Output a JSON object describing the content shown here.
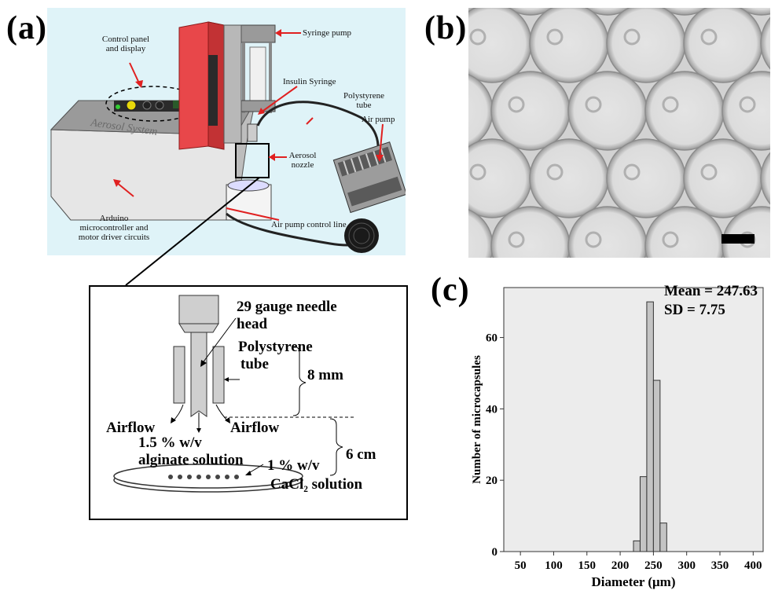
{
  "figure": {
    "panel_a": {
      "letter": "(a)",
      "device_labels": {
        "control_panel": "Control panel\nand display",
        "syringe_pump": "Syringe pump",
        "insulin_syringe": "Insulin Syringe",
        "polystyrene_tube": "Polystyrene\ntube",
        "air_pump": "Air pump",
        "aerosol_nozzle": "Aerosol\nnozzle",
        "arduino": "Arduino\nmicrocontroller and\nmotor driver circuits",
        "air_pump_control_line": "Air pump control line",
        "device_brand": "Aerosol System"
      },
      "schematic_labels": {
        "needle_head_1": "29 gauge needle",
        "needle_head_2": "head",
        "polystyrene_1": "Polystyrene",
        "polystyrene_2": "tube",
        "dim_8mm": "8 mm",
        "airflow_left": "Airflow",
        "airflow_right": "Airflow",
        "alginate_1": "1.5 % w/v",
        "alginate_2": "alginate solution",
        "cacl_1": "1 % w/v",
        "cacl_2": "CaCl₂ solution",
        "dim_6cm": "6 cm"
      }
    },
    "panel_b": {
      "letter": "(b)"
    },
    "panel_c": {
      "letter": "(c)",
      "stats_mean": "Mean = 247.63",
      "stats_sd": "SD = 7.75"
    }
  },
  "chart_data": {
    "type": "bar",
    "xlabel": "Diameter (μm)",
    "ylabel": "Number of microcapsules",
    "xlim": [
      25,
      415
    ],
    "ylim": [
      0,
      74
    ],
    "xticks": [
      50,
      100,
      150,
      200,
      250,
      300,
      350,
      400
    ],
    "yticks": [
      0,
      20,
      40,
      60
    ],
    "bin_width": 10,
    "bins": [
      {
        "center": 225,
        "count": 3
      },
      {
        "center": 235,
        "count": 21
      },
      {
        "center": 245,
        "count": 70
      },
      {
        "center": 255,
        "count": 48
      },
      {
        "center": 265,
        "count": 8
      }
    ],
    "annotations": [
      "Mean = 247.63",
      "SD = 7.75"
    ],
    "grid": false,
    "colors": {
      "bar_fill": "#c4c4c4",
      "plot_bg": "#ececec"
    }
  }
}
